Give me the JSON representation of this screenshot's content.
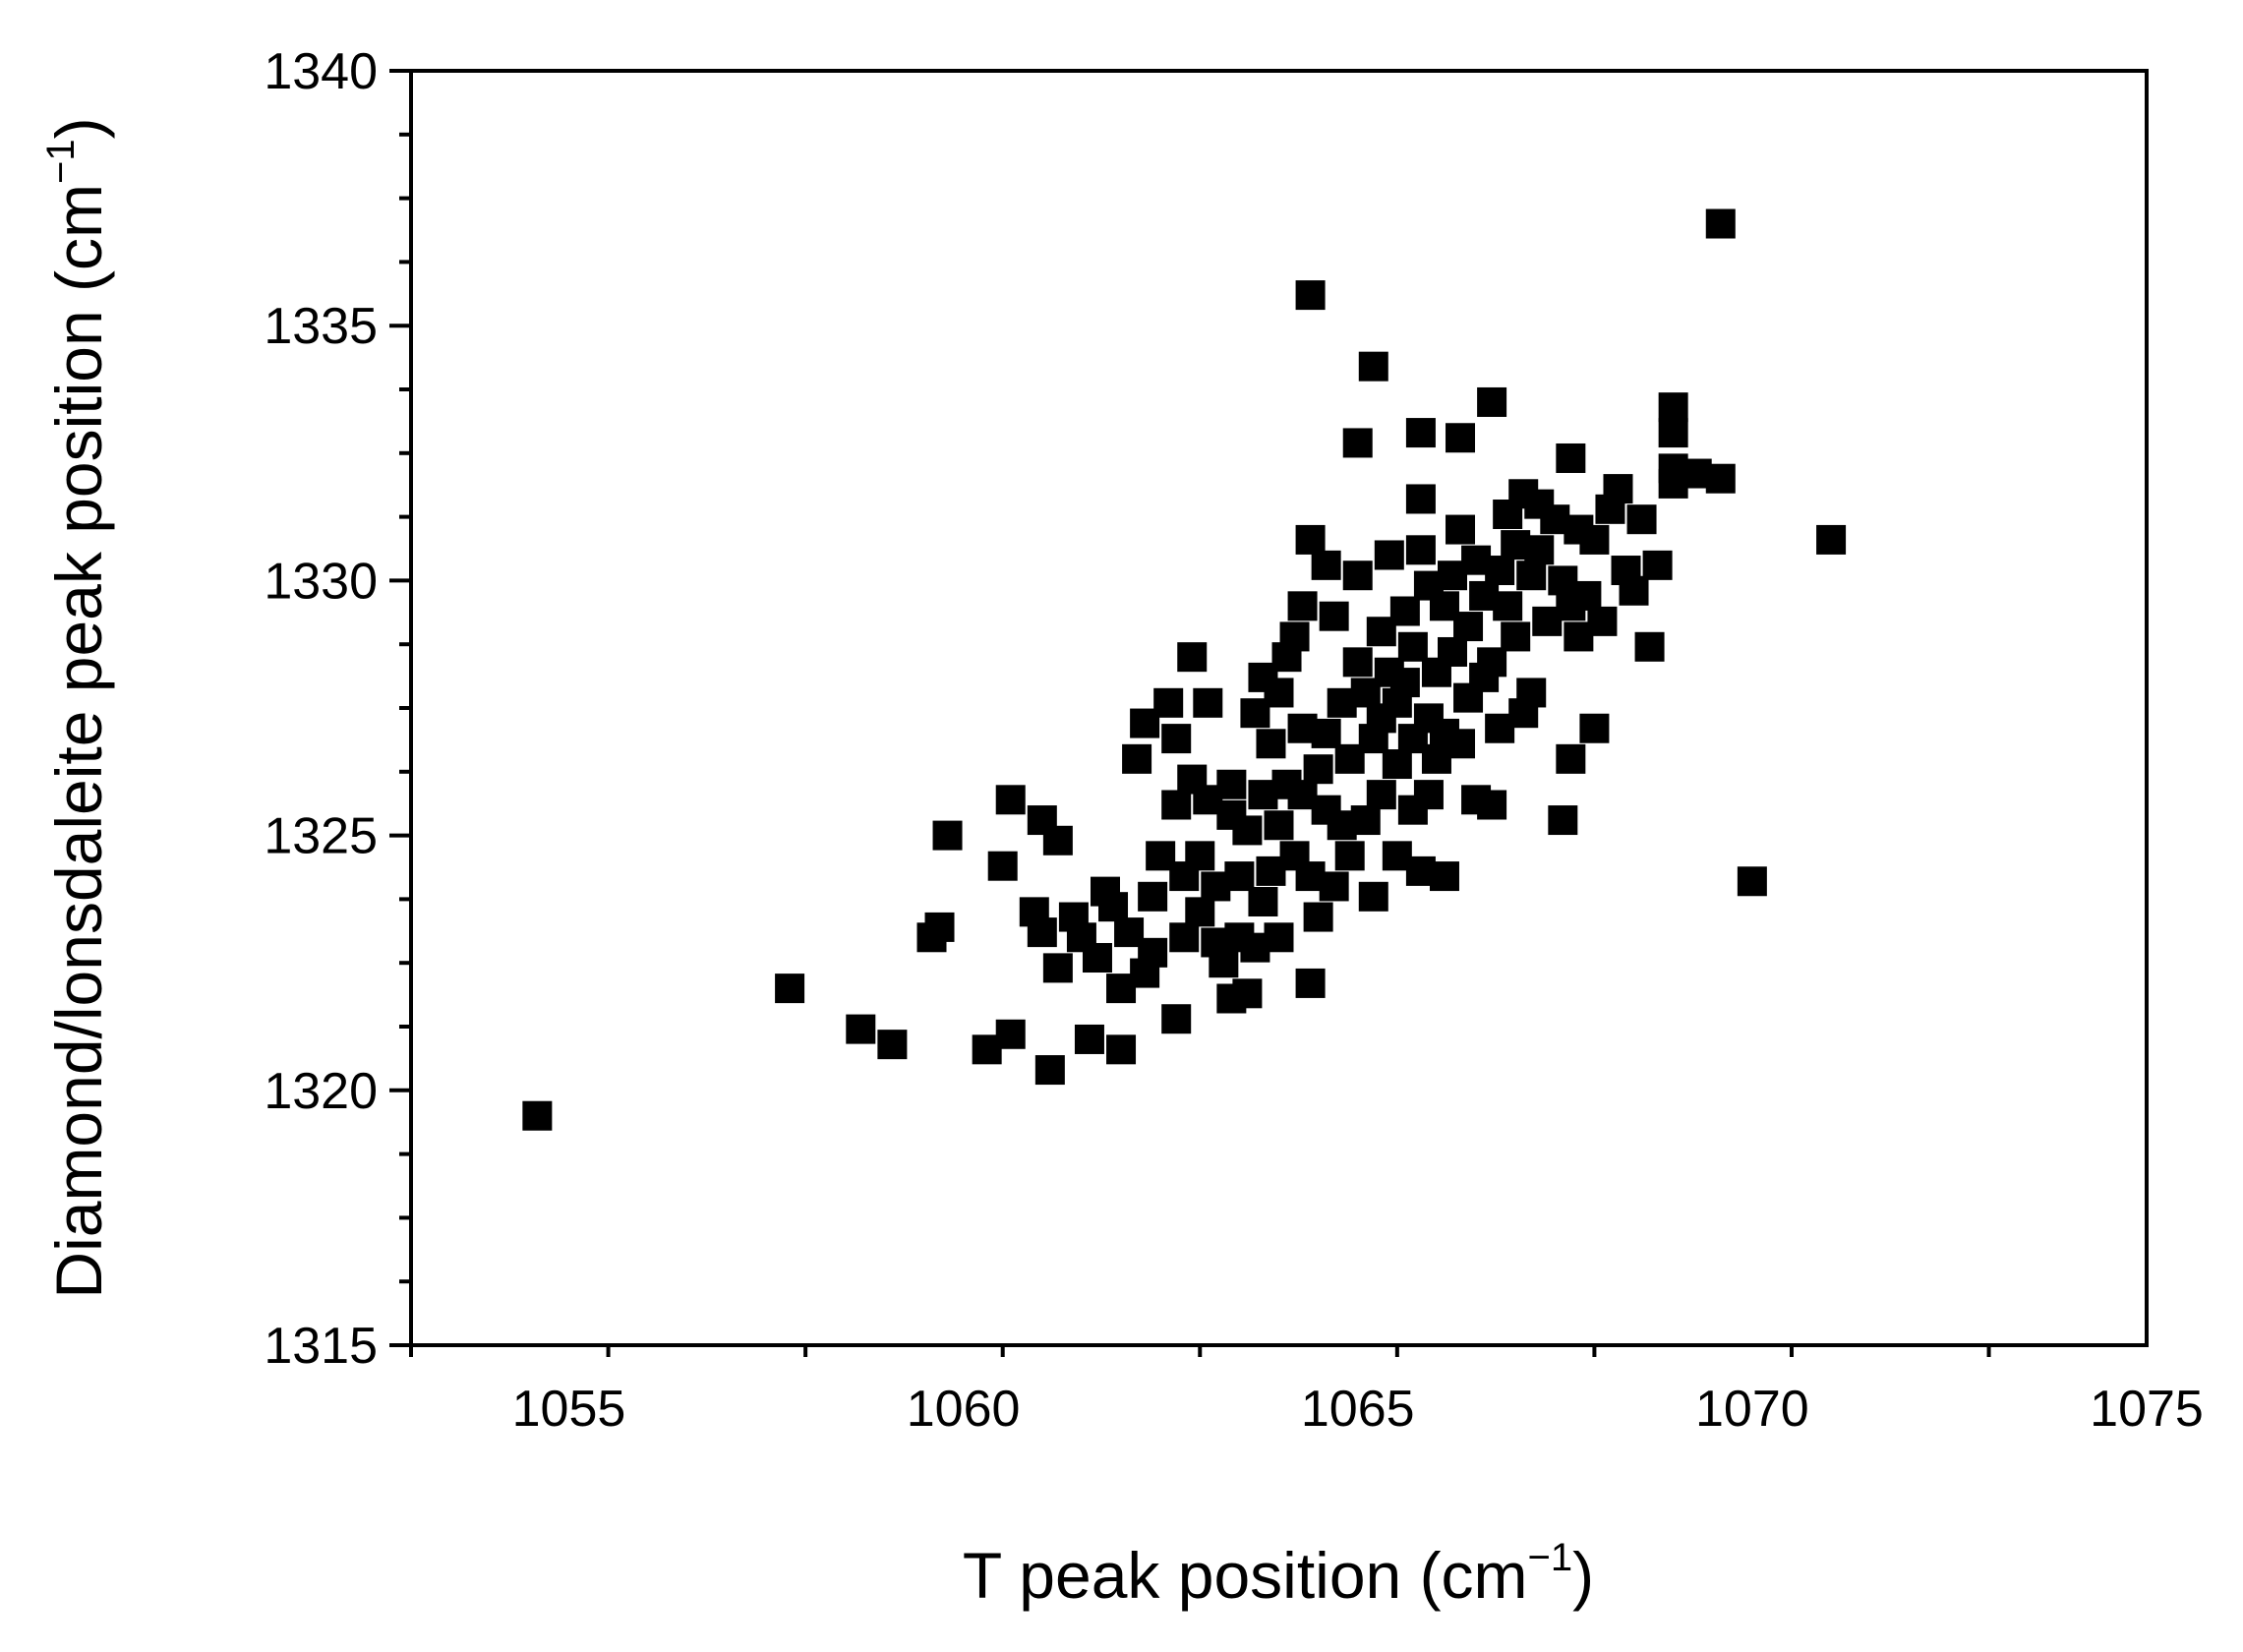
{
  "chart_data": {
    "type": "scatter",
    "title": "",
    "xlabel": "T peak position (cm",
    "xlabel_sup": "−1",
    "xlabel_end": ")",
    "ylabel": "Diamond/lonsdaleite peak position (cm",
    "ylabel_sup": "−1",
    "ylabel_end": ")",
    "xlim": [
      1053,
      1075
    ],
    "ylim": [
      1315,
      1340
    ],
    "xticks": [
      1055,
      1060,
      1065,
      1070,
      1075
    ],
    "yticks": [
      1315,
      1320,
      1325,
      1330,
      1335,
      1340
    ],
    "grid": false,
    "legend": "none",
    "marker": "square",
    "color": "#000000",
    "points": [
      [
        1054.6,
        1319.5
      ],
      [
        1057.8,
        1322.0
      ],
      [
        1058.7,
        1321.2
      ],
      [
        1059.1,
        1320.9
      ],
      [
        1059.6,
        1323.0
      ],
      [
        1059.7,
        1323.2
      ],
      [
        1059.8,
        1325.0
      ],
      [
        1060.3,
        1320.8
      ],
      [
        1060.5,
        1324.4
      ],
      [
        1060.6,
        1325.7
      ],
      [
        1060.6,
        1321.1
      ],
      [
        1060.9,
        1323.5
      ],
      [
        1061.0,
        1323.1
      ],
      [
        1061.0,
        1325.3
      ],
      [
        1061.1,
        1320.4
      ],
      [
        1061.2,
        1324.9
      ],
      [
        1061.2,
        1322.4
      ],
      [
        1061.4,
        1323.4
      ],
      [
        1061.5,
        1323.0
      ],
      [
        1061.6,
        1321.0
      ],
      [
        1061.7,
        1322.6
      ],
      [
        1061.8,
        1323.9
      ],
      [
        1061.9,
        1323.6
      ],
      [
        1062.0,
        1322.0
      ],
      [
        1062.0,
        1320.8
      ],
      [
        1062.1,
        1323.1
      ],
      [
        1062.2,
        1326.5
      ],
      [
        1062.3,
        1327.2
      ],
      [
        1062.3,
        1322.3
      ],
      [
        1062.4,
        1323.8
      ],
      [
        1062.4,
        1322.7
      ],
      [
        1062.5,
        1324.6
      ],
      [
        1062.6,
        1327.6
      ],
      [
        1062.7,
        1326.9
      ],
      [
        1062.7,
        1321.4
      ],
      [
        1062.7,
        1325.6
      ],
      [
        1062.8,
        1323.0
      ],
      [
        1062.8,
        1324.2
      ],
      [
        1062.9,
        1326.1
      ],
      [
        1062.9,
        1328.5
      ],
      [
        1063.0,
        1324.6
      ],
      [
        1063.0,
        1323.5
      ],
      [
        1063.1,
        1325.7
      ],
      [
        1063.1,
        1327.6
      ],
      [
        1063.2,
        1322.9
      ],
      [
        1063.2,
        1324.0
      ],
      [
        1063.3,
        1322.5
      ],
      [
        1063.4,
        1325.4
      ],
      [
        1063.4,
        1321.8
      ],
      [
        1063.4,
        1326.0
      ],
      [
        1063.5,
        1324.2
      ],
      [
        1063.5,
        1323.0
      ],
      [
        1063.6,
        1321.9
      ],
      [
        1063.6,
        1325.1
      ],
      [
        1063.7,
        1327.4
      ],
      [
        1063.7,
        1322.8
      ],
      [
        1063.8,
        1328.1
      ],
      [
        1063.8,
        1325.8
      ],
      [
        1063.8,
        1323.7
      ],
      [
        1063.9,
        1324.3
      ],
      [
        1063.9,
        1326.8
      ],
      [
        1064.0,
        1327.8
      ],
      [
        1064.0,
        1325.2
      ],
      [
        1064.0,
        1323.0
      ],
      [
        1064.1,
        1328.5
      ],
      [
        1064.1,
        1326.0
      ],
      [
        1064.2,
        1324.6
      ],
      [
        1064.2,
        1328.9
      ],
      [
        1064.3,
        1329.5
      ],
      [
        1064.3,
        1325.8
      ],
      [
        1064.3,
        1327.1
      ],
      [
        1064.4,
        1322.1
      ],
      [
        1064.4,
        1324.2
      ],
      [
        1064.4,
        1330.8
      ],
      [
        1064.4,
        1335.6
      ],
      [
        1064.5,
        1326.3
      ],
      [
        1064.5,
        1323.4
      ],
      [
        1064.6,
        1325.5
      ],
      [
        1064.6,
        1330.3
      ],
      [
        1064.6,
        1327.0
      ],
      [
        1064.7,
        1324.0
      ],
      [
        1064.7,
        1329.3
      ],
      [
        1064.8,
        1325.2
      ],
      [
        1064.8,
        1327.6
      ],
      [
        1064.9,
        1326.5
      ],
      [
        1064.9,
        1324.6
      ],
      [
        1065.0,
        1332.7
      ],
      [
        1065.0,
        1330.1
      ],
      [
        1065.0,
        1328.4
      ],
      [
        1065.1,
        1325.3
      ],
      [
        1065.1,
        1327.8
      ],
      [
        1065.2,
        1334.2
      ],
      [
        1065.2,
        1326.9
      ],
      [
        1065.2,
        1323.8
      ],
      [
        1065.3,
        1329.0
      ],
      [
        1065.3,
        1327.3
      ],
      [
        1065.3,
        1325.8
      ],
      [
        1065.4,
        1330.5
      ],
      [
        1065.4,
        1328.2
      ],
      [
        1065.5,
        1326.4
      ],
      [
        1065.5,
        1324.6
      ],
      [
        1065.5,
        1327.6
      ],
      [
        1065.6,
        1329.4
      ],
      [
        1065.6,
        1328.0
      ],
      [
        1065.7,
        1325.5
      ],
      [
        1065.7,
        1326.9
      ],
      [
        1065.7,
        1328.7
      ],
      [
        1065.8,
        1330.6
      ],
      [
        1065.8,
        1331.6
      ],
      [
        1065.8,
        1332.9
      ],
      [
        1065.8,
        1324.3
      ],
      [
        1065.9,
        1327.3
      ],
      [
        1065.9,
        1329.9
      ],
      [
        1065.9,
        1325.8
      ],
      [
        1066.0,
        1328.2
      ],
      [
        1066.0,
        1326.5
      ],
      [
        1066.1,
        1329.5
      ],
      [
        1066.1,
        1327.0
      ],
      [
        1066.1,
        1324.2
      ],
      [
        1066.2,
        1330.1
      ],
      [
        1066.2,
        1328.6
      ],
      [
        1066.3,
        1331.0
      ],
      [
        1066.3,
        1332.8
      ],
      [
        1066.3,
        1326.8
      ],
      [
        1066.4,
        1329.1
      ],
      [
        1066.4,
        1327.7
      ],
      [
        1066.5,
        1325.7
      ],
      [
        1066.5,
        1330.4
      ],
      [
        1066.6,
        1328.1
      ],
      [
        1066.6,
        1329.7
      ],
      [
        1066.7,
        1333.5
      ],
      [
        1066.7,
        1325.6
      ],
      [
        1066.7,
        1328.4
      ],
      [
        1066.8,
        1330.2
      ],
      [
        1066.8,
        1327.1
      ],
      [
        1066.9,
        1329.5
      ],
      [
        1066.9,
        1331.3
      ],
      [
        1067.0,
        1330.7
      ],
      [
        1067.0,
        1328.9
      ],
      [
        1067.1,
        1331.7
      ],
      [
        1067.1,
        1327.4
      ],
      [
        1067.2,
        1330.1
      ],
      [
        1067.2,
        1327.8
      ],
      [
        1067.3,
        1330.6
      ],
      [
        1067.3,
        1331.5
      ],
      [
        1067.4,
        1329.2
      ],
      [
        1067.5,
        1331.2
      ],
      [
        1067.6,
        1330.0
      ],
      [
        1067.6,
        1325.3
      ],
      [
        1067.7,
        1332.4
      ],
      [
        1067.7,
        1326.5
      ],
      [
        1067.7,
        1329.5
      ],
      [
        1067.8,
        1328.9
      ],
      [
        1067.8,
        1331.0
      ],
      [
        1067.9,
        1329.7
      ],
      [
        1068.0,
        1330.8
      ],
      [
        1068.0,
        1327.1
      ],
      [
        1068.1,
        1329.2
      ],
      [
        1068.2,
        1331.4
      ],
      [
        1068.3,
        1331.8
      ],
      [
        1068.4,
        1330.2
      ],
      [
        1068.5,
        1329.8
      ],
      [
        1068.6,
        1331.2
      ],
      [
        1068.7,
        1328.7
      ],
      [
        1068.8,
        1330.3
      ],
      [
        1069.0,
        1333.4
      ],
      [
        1069.0,
        1332.9
      ],
      [
        1069.0,
        1332.2
      ],
      [
        1069.0,
        1331.9
      ],
      [
        1069.3,
        1332.1
      ],
      [
        1069.6,
        1332.0
      ],
      [
        1069.6,
        1337.0
      ],
      [
        1070.0,
        1324.1
      ],
      [
        1071.0,
        1330.8
      ]
    ]
  }
}
